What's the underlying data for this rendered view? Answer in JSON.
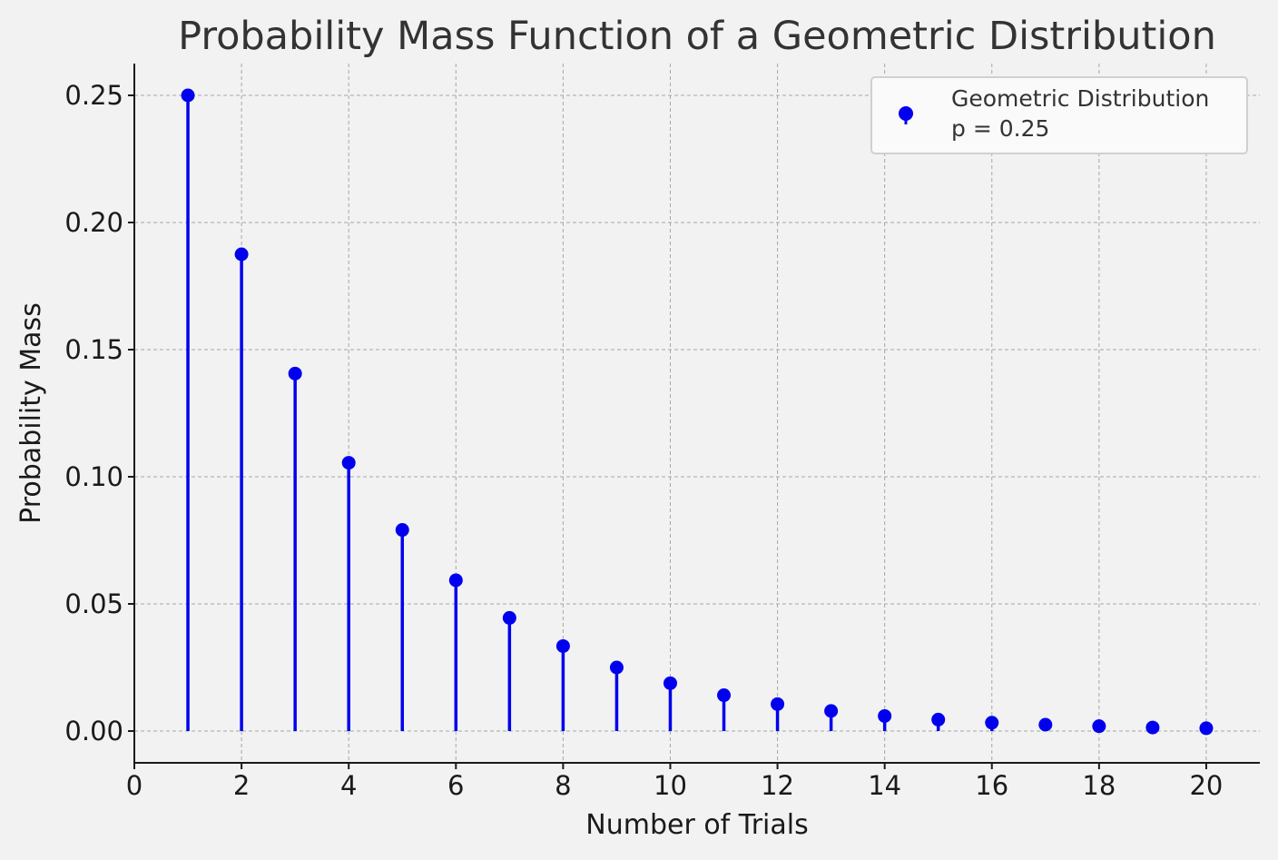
{
  "chart_data": {
    "type": "stem",
    "title": "Probability Mass Function of a Geometric Distribution",
    "xlabel": "Number of Trials",
    "ylabel": "Probability Mass",
    "xlim": [
      0,
      21
    ],
    "ylim": [
      -0.0125,
      0.2625
    ],
    "xticks": [
      "0",
      "2",
      "4",
      "6",
      "8",
      "10",
      "12",
      "14",
      "16",
      "18",
      "20"
    ],
    "yticks": [
      "0.00",
      "0.05",
      "0.10",
      "0.15",
      "0.20",
      "0.25"
    ],
    "grid": true,
    "legend_position": "top-right",
    "series": [
      {
        "name": "Geometric Distribution",
        "parameter_label": "p = 0.25",
        "color": "#0000ee",
        "x": [
          1,
          2,
          3,
          4,
          5,
          6,
          7,
          8,
          9,
          10,
          11,
          12,
          13,
          14,
          15,
          16,
          17,
          18,
          19,
          20
        ],
        "values": [
          0.25,
          0.1875,
          0.1406,
          0.1055,
          0.0791,
          0.0593,
          0.0445,
          0.0334,
          0.025,
          0.0188,
          0.0141,
          0.0106,
          0.0079,
          0.0059,
          0.0045,
          0.0033,
          0.0025,
          0.0019,
          0.0014,
          0.0011
        ]
      }
    ]
  }
}
